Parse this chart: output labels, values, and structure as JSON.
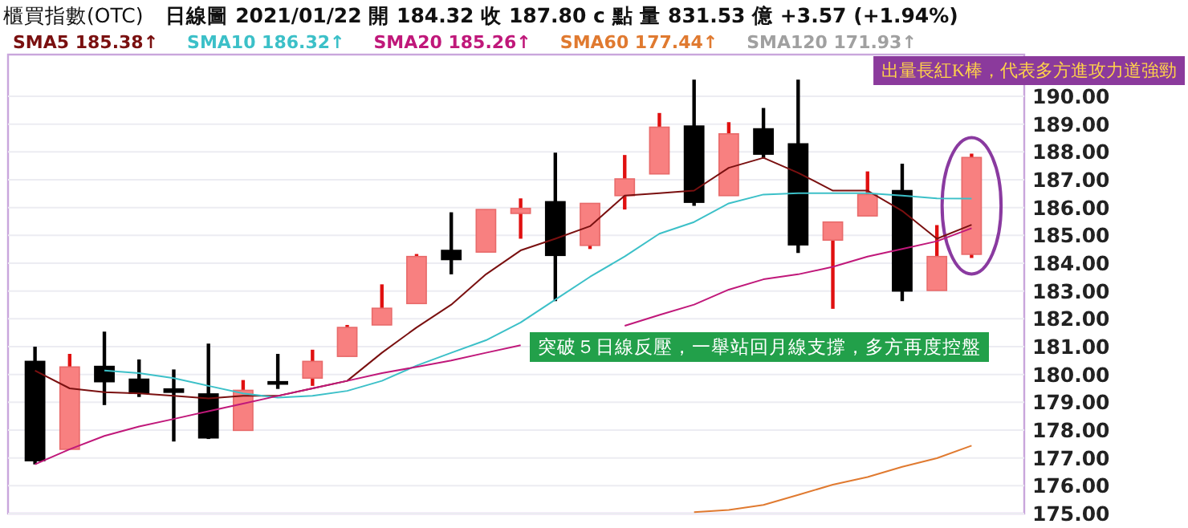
{
  "chart_data": {
    "type": "candlestick",
    "title": "櫃買指數(OTC)",
    "subtitle": "日線圖  2021/01/22  開 184.32  收 187.80 c 點  量 831.53 億  +3.57 (+1.94%)",
    "categories": [
      null,
      null,
      null,
      null,
      null,
      null,
      null,
      null,
      null,
      null,
      null,
      null,
      null,
      null,
      null,
      null,
      null,
      null,
      null,
      null,
      null,
      null,
      null,
      null,
      null,
      null,
      null,
      null
    ],
    "ohlc": [
      [
        180.47,
        181.0,
        176.77,
        176.9
      ],
      [
        177.31,
        180.74,
        177.31,
        180.27
      ],
      [
        180.29,
        181.54,
        178.9,
        179.74
      ],
      [
        179.83,
        180.54,
        179.19,
        179.32
      ],
      [
        179.48,
        180.18,
        177.59,
        179.36
      ],
      [
        179.3,
        181.11,
        177.68,
        177.72
      ],
      [
        177.99,
        179.8,
        177.99,
        179.43
      ],
      [
        179.74,
        180.74,
        179.48,
        179.67
      ],
      [
        179.87,
        180.89,
        179.59,
        180.47
      ],
      [
        180.65,
        181.78,
        180.65,
        181.69
      ],
      [
        181.78,
        183.24,
        181.78,
        182.38
      ],
      [
        182.55,
        184.33,
        182.55,
        184.24
      ],
      [
        184.46,
        185.83,
        183.6,
        184.13
      ],
      [
        184.4,
        185.93,
        184.4,
        185.93
      ],
      [
        185.79,
        186.33,
        184.88,
        185.97
      ],
      [
        186.21,
        187.97,
        182.64,
        184.28
      ],
      [
        184.64,
        186.15,
        184.51,
        186.15
      ],
      [
        186.43,
        187.89,
        185.93,
        187.03
      ],
      [
        187.21,
        189.4,
        187.21,
        188.89
      ],
      [
        188.93,
        190.6,
        186.06,
        186.19
      ],
      [
        186.43,
        189.07,
        186.43,
        188.65
      ],
      [
        188.83,
        189.58,
        187.76,
        187.92
      ],
      [
        188.29,
        190.6,
        184.37,
        184.66
      ],
      [
        184.83,
        185.48,
        182.36,
        185.48
      ],
      [
        185.7,
        187.3,
        185.7,
        186.47
      ],
      [
        186.61,
        187.58,
        182.64,
        183.0
      ],
      [
        183.02,
        185.37,
        183.02,
        184.24
      ],
      [
        184.32,
        187.94,
        184.19,
        187.8
      ]
    ],
    "series": [
      {
        "name": "SMA5 185.38↑",
        "color": "#7a1010",
        "type": "line",
        "values": [
          180.14,
          179.5,
          179.36,
          179.32,
          179.23,
          179.14,
          179.23,
          179.23,
          179.5,
          179.77,
          180.78,
          181.69,
          182.51,
          183.6,
          184.46,
          184.88,
          185.33,
          186.43,
          186.52,
          186.61,
          187.43,
          187.79,
          187.25,
          186.61,
          186.61,
          185.88,
          184.88,
          185.38
        ]
      },
      {
        "name": "SMA10 186.32↑",
        "color": "#3cc0c8",
        "type": "line",
        "values": [
          null,
          null,
          180.14,
          180.05,
          179.87,
          179.59,
          179.32,
          179.17,
          179.23,
          179.41,
          179.77,
          180.32,
          180.78,
          181.23,
          181.87,
          182.69,
          183.51,
          184.24,
          185.06,
          185.48,
          186.15,
          186.47,
          186.52,
          186.52,
          186.52,
          186.43,
          186.33,
          186.32
        ]
      },
      {
        "name": "SMA20 185.26↑",
        "color": "#c0187a",
        "type": "line",
        "values": [
          176.77,
          177.31,
          177.79,
          178.13,
          178.4,
          178.68,
          178.95,
          179.23,
          179.5,
          179.77,
          180.05,
          180.27,
          180.5,
          180.78,
          181.05,
          null,
          null,
          181.75,
          182.14,
          182.51,
          183.05,
          183.42,
          183.6,
          183.87,
          184.24,
          184.51,
          184.79,
          185.26
        ]
      },
      {
        "name": "SMA60 177.44↑",
        "color": "#e07a30",
        "type": "line",
        "values": [
          null,
          null,
          null,
          null,
          null,
          null,
          null,
          null,
          null,
          null,
          null,
          null,
          null,
          null,
          null,
          null,
          null,
          null,
          null,
          175.05,
          175.13,
          175.31,
          175.67,
          176.04,
          176.31,
          176.68,
          176.99,
          177.44
        ]
      },
      {
        "name": "SMA120 171.93↑",
        "color": "#a0a0a0",
        "type": "line",
        "values": [
          null,
          null,
          null,
          null,
          null,
          null,
          null,
          null,
          null,
          null,
          null,
          null,
          null,
          null,
          null,
          null,
          null,
          null,
          null,
          null,
          null,
          null,
          null,
          null,
          null,
          null,
          null,
          null
        ]
      }
    ],
    "ylim": [
      175,
      191.5
    ],
    "yticks": [
      {
        "value": 175,
        "label": "175.00"
      },
      {
        "value": 176,
        "label": "176.00"
      },
      {
        "value": 177,
        "label": "177.00"
      },
      {
        "value": 178,
        "label": "178.00"
      },
      {
        "value": 179,
        "label": "179.00"
      },
      {
        "value": 180,
        "label": "180.00"
      },
      {
        "value": 181,
        "label": "181.00"
      },
      {
        "value": 182,
        "label": "182.00"
      },
      {
        "value": 183,
        "label": "183.00"
      },
      {
        "value": 184,
        "label": "184.00"
      },
      {
        "value": 185,
        "label": "185.00"
      },
      {
        "value": 186,
        "label": "186.00"
      },
      {
        "value": 187,
        "label": "187.00"
      },
      {
        "value": 188,
        "label": "188.00"
      },
      {
        "value": 189,
        "label": "189.00"
      },
      {
        "value": 190,
        "label": "190.00"
      }
    ],
    "grid": "y",
    "legend": "top left",
    "annotations": [
      "出量長紅K棒，代表多方進攻力道強勁",
      "突破５日線反壓，一舉站回月線支撐，多方再度控盤"
    ]
  }
}
